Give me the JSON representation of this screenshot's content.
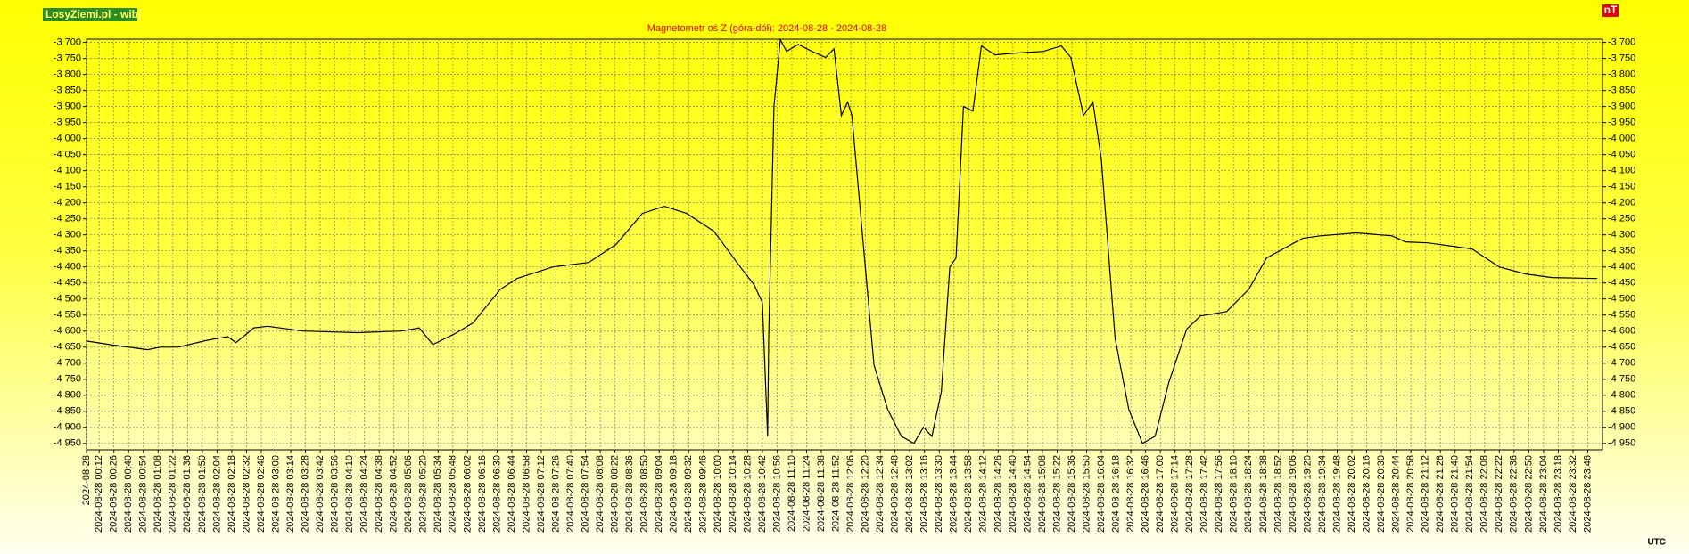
{
  "brand": "LosyZiemi.pl - wibi",
  "unit": "nT",
  "timezone": "UTC",
  "chart_data": {
    "type": "line",
    "title": "Magnetometr oś Z (góra-dół): 2024-08-28 - 2024-08-28",
    "xlim": [
      0,
      1440
    ],
    "ylim": [
      -4970,
      -3690
    ],
    "grid": true,
    "series": [
      {
        "color": "#000000",
        "x": [
          0,
          28,
          58,
          70,
          87,
          113,
          134,
          142,
          159,
          172,
          206,
          257,
          299,
          316,
          329,
          350,
          367,
          393,
          409,
          443,
          477,
          503,
          528,
          549,
          570,
          596,
          621,
          634,
          642,
          647,
          648,
          653,
          659,
          665,
          676,
          689,
          702,
          710,
          717,
          723,
          727,
          736,
          748,
          761,
          774,
          786,
          795,
          803,
          812,
          820,
          826,
          833,
          842,
          850,
          863,
          884,
          909,
          926,
          935,
          947,
          956,
          964,
          977,
          990,
          1003,
          1015,
          1028,
          1045,
          1058,
          1083,
          1104,
          1121,
          1155,
          1172,
          1206,
          1240,
          1253,
          1274,
          1316,
          1342,
          1367,
          1392,
          1435
        ],
        "values": [
          -4631,
          -4645,
          -4658,
          -4650,
          -4650,
          -4630,
          -4617,
          -4636,
          -4590,
          -4585,
          -4600,
          -4605,
          -4600,
          -4590,
          -4642,
          -4608,
          -4575,
          -4470,
          -4436,
          -4400,
          -4386,
          -4330,
          -4233,
          -4211,
          -4233,
          -4289,
          -4400,
          -4455,
          -4511,
          -4928,
          -4620,
          -3900,
          -3692,
          -3728,
          -3706,
          -3728,
          -3747,
          -3720,
          -3928,
          -3886,
          -3928,
          -4261,
          -4706,
          -4844,
          -4928,
          -4950,
          -4900,
          -4928,
          -4789,
          -4400,
          -4372,
          -3900,
          -3914,
          -3711,
          -3739,
          -3733,
          -3728,
          -3711,
          -3747,
          -3928,
          -3886,
          -4067,
          -4622,
          -4844,
          -4950,
          -4928,
          -4761,
          -4594,
          -4553,
          -4539,
          -4470,
          -4372,
          -4311,
          -4303,
          -4294,
          -4303,
          -4322,
          -4325,
          -4344,
          -4400,
          -4422,
          -4433,
          -4436
        ]
      }
    ],
    "yticks": [
      {
        "value": -3700,
        "label": "-3 700"
      },
      {
        "value": -3750,
        "label": "-3 750"
      },
      {
        "value": -3800,
        "label": "-3 800"
      },
      {
        "value": -3850,
        "label": "-3 850"
      },
      {
        "value": -3900,
        "label": "-3 900"
      },
      {
        "value": -3950,
        "label": "-3 950"
      },
      {
        "value": -4000,
        "label": "-4 000"
      },
      {
        "value": -4050,
        "label": "-4 050"
      },
      {
        "value": -4100,
        "label": "-4 100"
      },
      {
        "value": -4150,
        "label": "-4 150"
      },
      {
        "value": -4200,
        "label": "-4 200"
      },
      {
        "value": -4250,
        "label": "-4 250"
      },
      {
        "value": -4300,
        "label": "-4 300"
      },
      {
        "value": -4350,
        "label": "-4 350"
      },
      {
        "value": -4400,
        "label": "-4 400"
      },
      {
        "value": -4450,
        "label": "-4 450"
      },
      {
        "value": -4500,
        "label": "-4 500"
      },
      {
        "value": -4550,
        "label": "-4 550"
      },
      {
        "value": -4600,
        "label": "-4 600"
      },
      {
        "value": -4650,
        "label": "-4 650"
      },
      {
        "value": -4700,
        "label": "-4 700"
      },
      {
        "value": -4750,
        "label": "-4 750"
      },
      {
        "value": -4800,
        "label": "-4 800"
      },
      {
        "value": -4850,
        "label": "-4 850"
      },
      {
        "value": -4900,
        "label": "-4 900"
      },
      {
        "value": -4950,
        "label": "-4 950"
      }
    ],
    "xticks": [
      {
        "value": 0,
        "label": "2024-08-28"
      },
      {
        "value": 12,
        "label": "2024-08-28 00:12"
      },
      {
        "value": 26,
        "label": "2024-08-28 00:26"
      },
      {
        "value": 40,
        "label": "2024-08-28 00:40"
      },
      {
        "value": 54,
        "label": "2024-08-28 00:54"
      },
      {
        "value": 68,
        "label": "2024-08-28 01:08"
      },
      {
        "value": 82,
        "label": "2024-08-28 01:22"
      },
      {
        "value": 96,
        "label": "2024-08-28 01:36"
      },
      {
        "value": 110,
        "label": "2024-08-28 01:50"
      },
      {
        "value": 124,
        "label": "2024-08-28 02:04"
      },
      {
        "value": 138,
        "label": "2024-08-28 02:18"
      },
      {
        "value": 152,
        "label": "2024-08-28 02:32"
      },
      {
        "value": 166,
        "label": "2024-08-28 02:46"
      },
      {
        "value": 180,
        "label": "2024-08-28 03:00"
      },
      {
        "value": 194,
        "label": "2024-08-28 03:14"
      },
      {
        "value": 208,
        "label": "2024-08-28 03:28"
      },
      {
        "value": 222,
        "label": "2024-08-28 03:42"
      },
      {
        "value": 236,
        "label": "2024-08-28 03:56"
      },
      {
        "value": 250,
        "label": "2024-08-28 04:10"
      },
      {
        "value": 264,
        "label": "2024-08-28 04:24"
      },
      {
        "value": 278,
        "label": "2024-08-28 04:38"
      },
      {
        "value": 292,
        "label": "2024-08-28 04:52"
      },
      {
        "value": 306,
        "label": "2024-08-28 05:06"
      },
      {
        "value": 320,
        "label": "2024-08-28 05:20"
      },
      {
        "value": 334,
        "label": "2024-08-28 05:34"
      },
      {
        "value": 348,
        "label": "2024-08-28 05:48"
      },
      {
        "value": 362,
        "label": "2024-08-28 06:02"
      },
      {
        "value": 376,
        "label": "2024-08-28 06:16"
      },
      {
        "value": 390,
        "label": "2024-08-28 06:30"
      },
      {
        "value": 404,
        "label": "2024-08-28 06:44"
      },
      {
        "value": 418,
        "label": "2024-08-28 06:58"
      },
      {
        "value": 432,
        "label": "2024-08-28 07:12"
      },
      {
        "value": 446,
        "label": "2024-08-28 07:26"
      },
      {
        "value": 460,
        "label": "2024-08-28 07:40"
      },
      {
        "value": 474,
        "label": "2024-08-28 07:54"
      },
      {
        "value": 488,
        "label": "2024-08-28 08:08"
      },
      {
        "value": 502,
        "label": "2024-08-28 08:22"
      },
      {
        "value": 516,
        "label": "2024-08-28 08:36"
      },
      {
        "value": 530,
        "label": "2024-08-28 08:50"
      },
      {
        "value": 544,
        "label": "2024-08-28 09:04"
      },
      {
        "value": 558,
        "label": "2024-08-28 09:18"
      },
      {
        "value": 572,
        "label": "2024-08-28 09:32"
      },
      {
        "value": 586,
        "label": "2024-08-28 09:46"
      },
      {
        "value": 600,
        "label": "2024-08-28 10:00"
      },
      {
        "value": 614,
        "label": "2024-08-28 10:14"
      },
      {
        "value": 628,
        "label": "2024-08-28 10:28"
      },
      {
        "value": 642,
        "label": "2024-08-28 10:42"
      },
      {
        "value": 656,
        "label": "2024-08-28 10:56"
      },
      {
        "value": 670,
        "label": "2024-08-28 11:10"
      },
      {
        "value": 684,
        "label": "2024-08-28 11:24"
      },
      {
        "value": 698,
        "label": "2024-08-28 11:38"
      },
      {
        "value": 712,
        "label": "2024-08-28 11:52"
      },
      {
        "value": 726,
        "label": "2024-08-28 12:06"
      },
      {
        "value": 740,
        "label": "2024-08-28 12:20"
      },
      {
        "value": 754,
        "label": "2024-08-28 12:34"
      },
      {
        "value": 768,
        "label": "2024-08-28 12:48"
      },
      {
        "value": 782,
        "label": "2024-08-28 13:02"
      },
      {
        "value": 796,
        "label": "2024-08-28 13:16"
      },
      {
        "value": 810,
        "label": "2024-08-28 13:30"
      },
      {
        "value": 824,
        "label": "2024-08-28 13:44"
      },
      {
        "value": 838,
        "label": "2024-08-28 13:58"
      },
      {
        "value": 852,
        "label": "2024-08-28 14:12"
      },
      {
        "value": 866,
        "label": "2024-08-28 14:26"
      },
      {
        "value": 880,
        "label": "2024-08-28 14:40"
      },
      {
        "value": 894,
        "label": "2024-08-28 14:54"
      },
      {
        "value": 908,
        "label": "2024-08-28 15:08"
      },
      {
        "value": 922,
        "label": "2024-08-28 15:22"
      },
      {
        "value": 936,
        "label": "2024-08-28 15:36"
      },
      {
        "value": 950,
        "label": "2024-08-28 15:50"
      },
      {
        "value": 964,
        "label": "2024-08-28 16:04"
      },
      {
        "value": 978,
        "label": "2024-08-28 16:18"
      },
      {
        "value": 992,
        "label": "2024-08-28 16:32"
      },
      {
        "value": 1006,
        "label": "2024-08-28 16:46"
      },
      {
        "value": 1020,
        "label": "2024-08-28 17:00"
      },
      {
        "value": 1034,
        "label": "2024-08-28 17:14"
      },
      {
        "value": 1048,
        "label": "2024-08-28 17:28"
      },
      {
        "value": 1062,
        "label": "2024-08-28 17:42"
      },
      {
        "value": 1076,
        "label": "2024-08-28 17:56"
      },
      {
        "value": 1090,
        "label": "2024-08-28 18:10"
      },
      {
        "value": 1104,
        "label": "2024-08-28 18:24"
      },
      {
        "value": 1118,
        "label": "2024-08-28 18:38"
      },
      {
        "value": 1132,
        "label": "2024-08-28 18:52"
      },
      {
        "value": 1146,
        "label": "2024-08-28 19:06"
      },
      {
        "value": 1160,
        "label": "2024-08-28 19:20"
      },
      {
        "value": 1174,
        "label": "2024-08-28 19:34"
      },
      {
        "value": 1188,
        "label": "2024-08-28 19:48"
      },
      {
        "value": 1202,
        "label": "2024-08-28 20:02"
      },
      {
        "value": 1216,
        "label": "2024-08-28 20:16"
      },
      {
        "value": 1230,
        "label": "2024-08-28 20:30"
      },
      {
        "value": 1244,
        "label": "2024-08-28 20:44"
      },
      {
        "value": 1258,
        "label": "2024-08-28 20:58"
      },
      {
        "value": 1272,
        "label": "2024-08-28 21:12"
      },
      {
        "value": 1286,
        "label": "2024-08-28 21:26"
      },
      {
        "value": 1300,
        "label": "2024-08-28 21:40"
      },
      {
        "value": 1314,
        "label": "2024-08-28 21:54"
      },
      {
        "value": 1328,
        "label": "2024-08-28 22:08"
      },
      {
        "value": 1342,
        "label": "2024-08-28 22:22"
      },
      {
        "value": 1356,
        "label": "2024-08-28 22:36"
      },
      {
        "value": 1370,
        "label": "2024-08-28 22:50"
      },
      {
        "value": 1384,
        "label": "2024-08-28 23:04"
      },
      {
        "value": 1398,
        "label": "2024-08-28 23:18"
      },
      {
        "value": 1412,
        "label": "2024-08-28 23:32"
      },
      {
        "value": 1426,
        "label": "2024-08-28 23:46"
      }
    ]
  }
}
